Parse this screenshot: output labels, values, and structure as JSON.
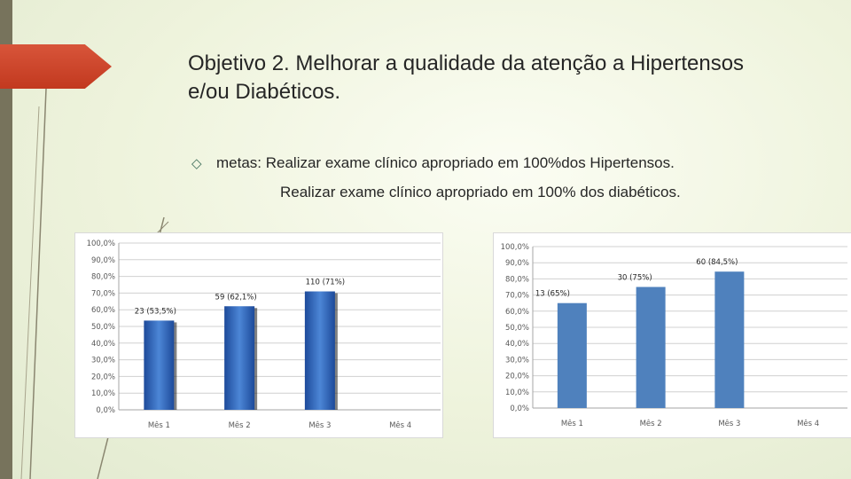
{
  "slide": {
    "title": "Objetivo 2. Melhorar a qualidade da atenção a Hipertensos e/ou Diabéticos.",
    "bullet_icon": "diamond-outline-icon",
    "bullet_text": "metas: Realizar exame clínico apropriado em 100%dos Hipertensos.",
    "line2": "Realizar exame clínico apropriado em 100% dos diabéticos.",
    "colors": {
      "accent_arrow": "#c8432a",
      "side_bar": "#77735c"
    }
  },
  "chart_data": [
    {
      "type": "bar",
      "title": "",
      "categories": [
        "Mês 1",
        "Mês 2",
        "Mês 3",
        "Mês 4"
      ],
      "values": [
        53.5,
        62.1,
        71,
        null
      ],
      "data_labels": [
        "23 (53,5%)",
        "59 (62,1%)",
        "110 (71%)",
        ""
      ],
      "ylim": [
        0,
        100
      ],
      "yticks": [
        "0,0%",
        "10,0%",
        "20,0%",
        "30,0%",
        "40,0%",
        "50,0%",
        "60,0%",
        "70,0%",
        "80,0%",
        "90,0%",
        "100,0%"
      ],
      "grid": true,
      "legend": "none",
      "bar_color": "#2e63b8",
      "style": "gradient-3d"
    },
    {
      "type": "bar",
      "title": "",
      "categories": [
        "Mês 1",
        "Mês 2",
        "Mês 3",
        "Mês 4"
      ],
      "values": [
        65,
        75,
        84.5,
        null
      ],
      "data_labels": [
        "13 (65%)",
        "30 (75%)",
        "60 (84,5%)",
        ""
      ],
      "ylim": [
        0,
        100
      ],
      "yticks": [
        "0,0%",
        "10,0%",
        "20,0%",
        "30,0%",
        "40,0%",
        "50,0%",
        "60,0%",
        "70,0%",
        "80,0%",
        "90,0%",
        "100,0%"
      ],
      "grid": true,
      "legend": "none",
      "bar_color": "#4f81bd",
      "style": "flat"
    }
  ]
}
